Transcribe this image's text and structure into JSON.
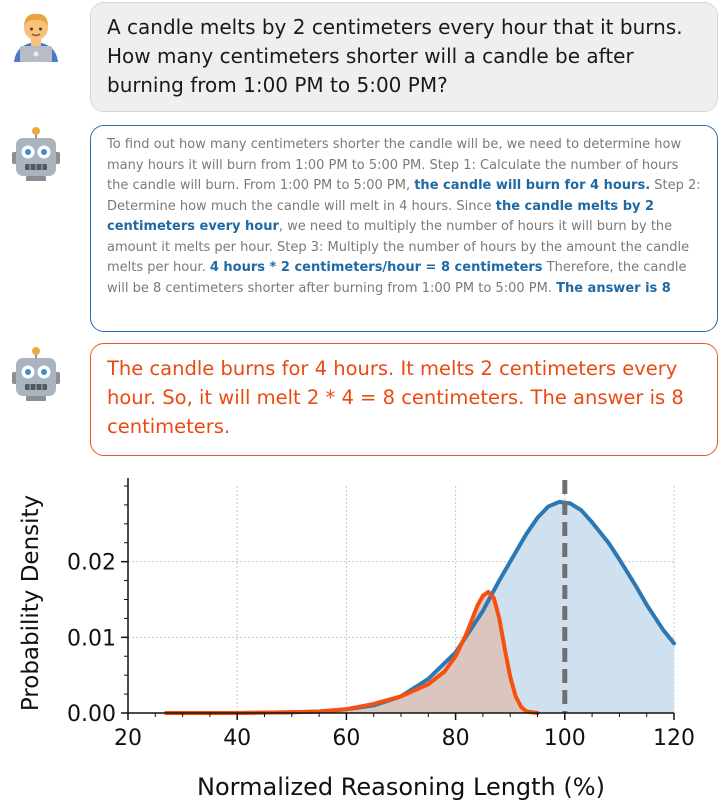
{
  "question": {
    "text": "A candle melts by 2 centimeters every hour that it burns. How many centimeters shorter will a candle be after burning from 1:00 PM to 5:00 PM?"
  },
  "long_response": {
    "segments": [
      {
        "text": "To find out how many centimeters shorter the candle will be, we need to determine how many hours it will burn from 1:00 PM to 5:00 PM. Step 1: Calculate the number of hours the candle will burn. From 1:00 PM to 5:00 PM, ",
        "highlight": false
      },
      {
        "text": "the candle will burn for 4 hours.",
        "highlight": true
      },
      {
        "text": " Step 2: Determine how much the candle will melt in 4 hours. Since ",
        "highlight": false
      },
      {
        "text": "the candle melts by 2 centimeters every hour",
        "highlight": true
      },
      {
        "text": ", we need to multiply the number of hours it will burn by the amount it melts per hour. Step 3: Multiply the number of hours by the amount the candle melts per hour. ",
        "highlight": false
      },
      {
        "text": "4 hours * 2 centimeters/hour = 8 centimeters",
        "highlight": true
      },
      {
        "text": " Therefore, the candle will be 8 centimeters shorter after burning from 1:00 PM to 5:00 PM. ",
        "highlight": false
      },
      {
        "text": "The answer is 8",
        "highlight": true
      }
    ]
  },
  "short_response": {
    "text": "The candle burns for 4 hours. It melts 2 centimeters every hour. So, it will melt 2 * 4 = 8 centimeters. The answer is 8 centimeters."
  },
  "colors": {
    "blue": "#2b78b4",
    "blue_fill": "#cfe1ef",
    "orange": "#f5500e",
    "orange_fill": "#dcbfb6",
    "reference_line": "#707070"
  },
  "chart_data": {
    "type": "area",
    "xlabel": "Normalized Reasoning Length (%)",
    "ylabel": "Probability Density",
    "xlim": [
      20,
      120
    ],
    "ylim": [
      0,
      0.03
    ],
    "xticks": [
      20,
      40,
      60,
      80,
      100,
      120
    ],
    "yticks": [
      0.0,
      0.01,
      0.02
    ],
    "xtick_labels": [
      "20",
      "40",
      "60",
      "80",
      "100",
      "120"
    ],
    "ytick_labels": [
      "0.00",
      "0.01",
      "0.02"
    ],
    "grid": true,
    "reference_line_x": 100,
    "series": [
      {
        "color_key": "blue",
        "points": [
          [
            27,
            0
          ],
          [
            40,
            0
          ],
          [
            50,
            0.0001
          ],
          [
            55,
            0.0002
          ],
          [
            60,
            0.0005
          ],
          [
            65,
            0.001
          ],
          [
            70,
            0.0022
          ],
          [
            75,
            0.0045
          ],
          [
            80,
            0.008
          ],
          [
            85,
            0.0135
          ],
          [
            88,
            0.0175
          ],
          [
            90,
            0.02
          ],
          [
            93,
            0.0237
          ],
          [
            95,
            0.0258
          ],
          [
            97,
            0.0273
          ],
          [
            99,
            0.0279
          ],
          [
            101,
            0.0277
          ],
          [
            103,
            0.0268
          ],
          [
            105,
            0.0252
          ],
          [
            108,
            0.0225
          ],
          [
            110,
            0.0203
          ],
          [
            113,
            0.0168
          ],
          [
            115,
            0.0143
          ],
          [
            118,
            0.011
          ],
          [
            120,
            0.0092
          ]
        ]
      },
      {
        "color_key": "orange",
        "points": [
          [
            27,
            0
          ],
          [
            40,
            0
          ],
          [
            50,
            0.0001
          ],
          [
            55,
            0.0002
          ],
          [
            60,
            0.0005
          ],
          [
            65,
            0.0012
          ],
          [
            70,
            0.0022
          ],
          [
            75,
            0.0038
          ],
          [
            78,
            0.0055
          ],
          [
            80,
            0.0075
          ],
          [
            82,
            0.0105
          ],
          [
            84,
            0.0142
          ],
          [
            85,
            0.0155
          ],
          [
            86,
            0.016
          ],
          [
            87,
            0.0152
          ],
          [
            88,
            0.0125
          ],
          [
            89,
            0.0085
          ],
          [
            90,
            0.0048
          ],
          [
            91,
            0.0022
          ],
          [
            92,
            0.0008
          ],
          [
            93,
            0.0002
          ],
          [
            95,
            0
          ]
        ]
      }
    ]
  }
}
